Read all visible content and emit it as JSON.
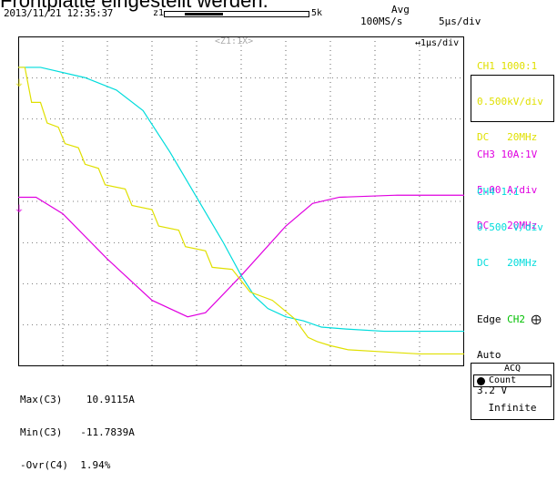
{
  "page_title_partial": "Frontplatte eingestellt werden.",
  "header": {
    "timestamp": "2013/11/21 12:35:37",
    "record_marker_left": "z1",
    "record_marker_right": "5k",
    "mode": "Avg",
    "sample_rate": "100MS/s",
    "time_div": "5µs/div",
    "zoom_div": "↔1µs/div",
    "zoom_label": "<Z1:1X>"
  },
  "channels": {
    "ch1": {
      "line1": "CH1 1000:1",
      "line2": "0.500kV/div",
      "line3": "DC   20MHz",
      "color": "#e0e000"
    },
    "ch3": {
      "line1": "CH3 10A:1V",
      "line2": "5.00 A/div",
      "line3": "DC   20MHz",
      "color": "#e000e0"
    },
    "ch4": {
      "line1": "CH4 1:1",
      "line2": "0.500 V/div",
      "line3": "DC   20MHz",
      "color": "#00dcdc"
    }
  },
  "trigger": {
    "type_label": "Edge",
    "source": "CH2",
    "edge_symbol": "⨁",
    "mode": "Auto",
    "level": "3.2 V",
    "source_color": "#00c000"
  },
  "measurements": [
    {
      "label": "Max(C3)",
      "value": "10.9115A"
    },
    {
      "label": "Min(C3)",
      "value": "-11.7839A"
    },
    {
      "label": "-Ovr(C4)",
      "value": "1.94%"
    }
  ],
  "acq": {
    "title": "ACQ",
    "mode": "Count",
    "value": "Infinite"
  },
  "traces": {
    "ch1_yellow_volts_per_div": [
      [
        0,
        3.25
      ],
      [
        0.15,
        3.25
      ],
      [
        0.3,
        2.4
      ],
      [
        0.5,
        2.4
      ],
      [
        0.65,
        1.9
      ],
      [
        0.9,
        1.8
      ],
      [
        1.05,
        1.4
      ],
      [
        1.35,
        1.3
      ],
      [
        1.5,
        0.9
      ],
      [
        1.8,
        0.8
      ],
      [
        1.95,
        0.4
      ],
      [
        2.4,
        0.3
      ],
      [
        2.55,
        -0.1
      ],
      [
        3.0,
        -0.2
      ],
      [
        3.15,
        -0.6
      ],
      [
        3.6,
        -0.7
      ],
      [
        3.75,
        -1.1
      ],
      [
        4.2,
        -1.2
      ],
      [
        4.35,
        -1.6
      ],
      [
        4.8,
        -1.65
      ],
      [
        5.2,
        -2.2
      ],
      [
        5.7,
        -2.4
      ],
      [
        6.2,
        -2.85
      ],
      [
        6.5,
        -3.3
      ],
      [
        6.7,
        -3.4
      ],
      [
        7.0,
        -3.5
      ],
      [
        7.2,
        -3.55
      ],
      [
        7.4,
        -3.6
      ],
      [
        8.2,
        -3.65
      ],
      [
        9.0,
        -3.7
      ],
      [
        10,
        -3.7
      ]
    ],
    "ch3_magenta_volts_per_div": [
      [
        0,
        0.1
      ],
      [
        0.4,
        0.1
      ],
      [
        1.0,
        -0.3
      ],
      [
        2.0,
        -1.4
      ],
      [
        3.0,
        -2.4
      ],
      [
        3.8,
        -2.8
      ],
      [
        4.2,
        -2.7
      ],
      [
        5.0,
        -1.8
      ],
      [
        6.0,
        -0.6
      ],
      [
        6.6,
        -0.05
      ],
      [
        7.2,
        0.1
      ],
      [
        8.5,
        0.15
      ],
      [
        10,
        0.15
      ]
    ],
    "ch4_cyan_volts_per_div": [
      [
        0,
        3.25
      ],
      [
        0.5,
        3.25
      ],
      [
        1.5,
        3.0
      ],
      [
        2.2,
        2.7
      ],
      [
        2.8,
        2.2
      ],
      [
        3.4,
        1.2
      ],
      [
        4.0,
        0.1
      ],
      [
        4.6,
        -1.0
      ],
      [
        5.0,
        -1.8
      ],
      [
        5.3,
        -2.3
      ],
      [
        5.6,
        -2.6
      ],
      [
        6.0,
        -2.8
      ],
      [
        6.4,
        -2.9
      ],
      [
        6.8,
        -3.05
      ],
      [
        7.4,
        -3.1
      ],
      [
        8.2,
        -3.15
      ],
      [
        9.0,
        -3.15
      ],
      [
        10,
        -3.15
      ]
    ]
  }
}
